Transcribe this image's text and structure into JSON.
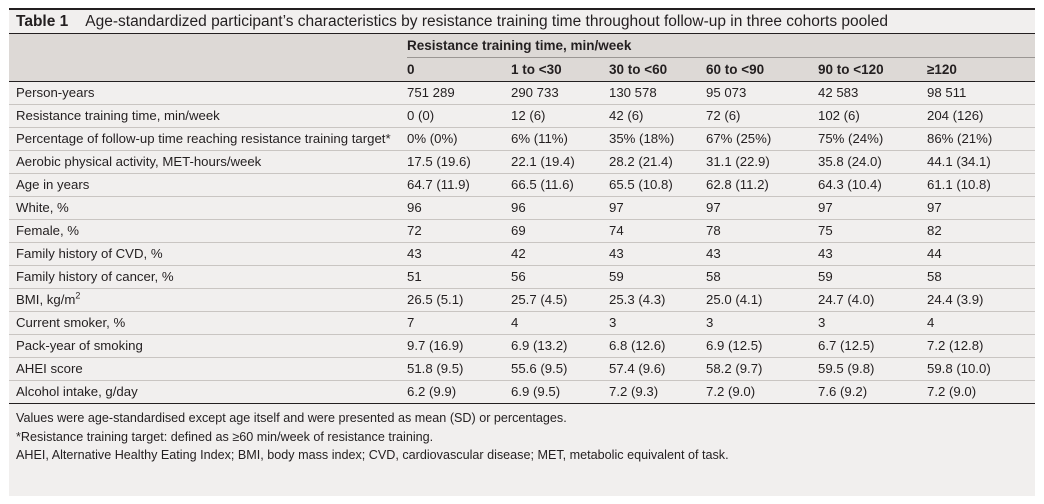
{
  "table": {
    "number": "Table 1",
    "caption": "Age-standardized participant’s characteristics by resistance training time throughout follow-up in three cohorts pooled",
    "spanner": "Resistance training time, min/week",
    "columns": [
      "0",
      "1 to <30",
      "30 to <60",
      "60 to <90",
      "90 to <120",
      "≥120"
    ],
    "rows": [
      {
        "label": "Person-years",
        "values": [
          "751 289",
          "290 733",
          "130 578",
          "95 073",
          "42 583",
          "98 511"
        ]
      },
      {
        "label": "Resistance training time, min/week",
        "values": [
          "0 (0)",
          "12 (6)",
          "42 (6)",
          "72 (6)",
          "102 (6)",
          "204 (126)"
        ]
      },
      {
        "label": "Percentage of follow-up time reaching resistance training target*",
        "values": [
          "0% (0%)",
          "6% (11%)",
          "35% (18%)",
          "67% (25%)",
          "75% (24%)",
          "86% (21%)"
        ]
      },
      {
        "label": "Aerobic physical activity, MET-hours/week",
        "values": [
          "17.5 (19.6)",
          "22.1 (19.4)",
          "28.2 (21.4)",
          "31.1 (22.9)",
          "35.8 (24.0)",
          "44.1 (34.1)"
        ]
      },
      {
        "label": "Age in years",
        "values": [
          "64.7 (11.9)",
          "66.5 (11.6)",
          "65.5 (10.8)",
          "62.8 (11.2)",
          "64.3 (10.4)",
          "61.1 (10.8)"
        ]
      },
      {
        "label": "White, %",
        "values": [
          "96",
          "96",
          "97",
          "97",
          "97",
          "97"
        ]
      },
      {
        "label": "Female, %",
        "values": [
          "72",
          "69",
          "74",
          "78",
          "75",
          "82"
        ]
      },
      {
        "label": "Family history of CVD, %",
        "values": [
          "43",
          "42",
          "43",
          "43",
          "43",
          "44"
        ]
      },
      {
        "label": "Family history of cancer, %",
        "values": [
          "51",
          "56",
          "59",
          "58",
          "59",
          "58"
        ]
      },
      {
        "label": "BMI, kg/m",
        "label_sup": "2",
        "values": [
          "26.5 (5.1)",
          "25.7 (4.5)",
          "25.3 (4.3)",
          "25.0 (4.1)",
          "24.7 (4.0)",
          "24.4 (3.9)"
        ]
      },
      {
        "label": "Current smoker, %",
        "values": [
          "7",
          "4",
          "3",
          "3",
          "3",
          "4"
        ]
      },
      {
        "label": "Pack-year of smoking",
        "values": [
          "9.7 (16.9)",
          "6.9 (13.2)",
          "6.8 (12.6)",
          "6.9 (12.5)",
          "6.7 (12.5)",
          "7.2 (12.8)"
        ]
      },
      {
        "label": "AHEI score",
        "values": [
          "51.8 (9.5)",
          "55.6 (9.5)",
          "57.4 (9.6)",
          "58.2 (9.7)",
          "59.5 (9.8)",
          "59.8 (10.0)"
        ]
      },
      {
        "label": "Alcohol intake, g/day",
        "values": [
          "6.2 (9.9)",
          "6.9 (9.5)",
          "7.2 (9.3)",
          "7.2 (9.0)",
          "7.6 (9.2)",
          "7.2 (9.0)"
        ]
      }
    ],
    "footnotes": [
      "Values were age-standardised except age itself and were presented as mean (SD) or percentages.",
      "*Resistance training target: defined as ≥60 min/week of resistance training.",
      "AHEI, Alternative Healthy Eating Index; BMI, body mass index; CVD, cardiovascular disease; MET, metabolic equivalent of task."
    ]
  }
}
